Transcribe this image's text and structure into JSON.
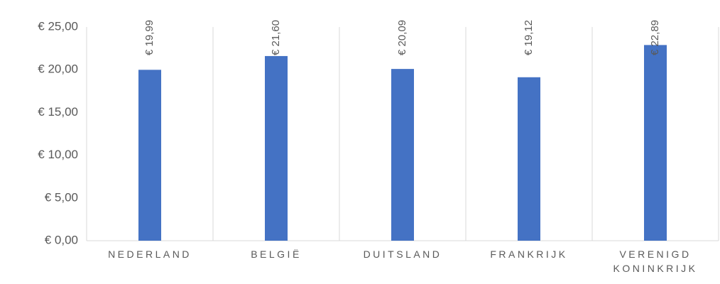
{
  "chart_data": {
    "type": "bar",
    "categories": [
      "NEDERLAND",
      "BELGIË",
      "DUITSLAND",
      "FRANKRIJK",
      "VERENIGD KONINKRIJK"
    ],
    "values": [
      19.99,
      21.6,
      20.09,
      19.12,
      22.89
    ],
    "value_labels": [
      "€ 19,99",
      "€ 21,60",
      "€ 20,09",
      "€ 19,12",
      "€ 22,89"
    ],
    "color": "#4472c4",
    "ylim": [
      0,
      25
    ],
    "yticks": [
      {
        "value": 0,
        "label": "€ 0,00"
      },
      {
        "value": 5,
        "label": "€ 5,00"
      },
      {
        "value": 10,
        "label": "€ 10,00"
      },
      {
        "value": 15,
        "label": "€ 15,00"
      },
      {
        "value": 20,
        "label": "€ 20,00"
      },
      {
        "value": 25,
        "label": "€ 25,00"
      }
    ],
    "grid": false
  }
}
